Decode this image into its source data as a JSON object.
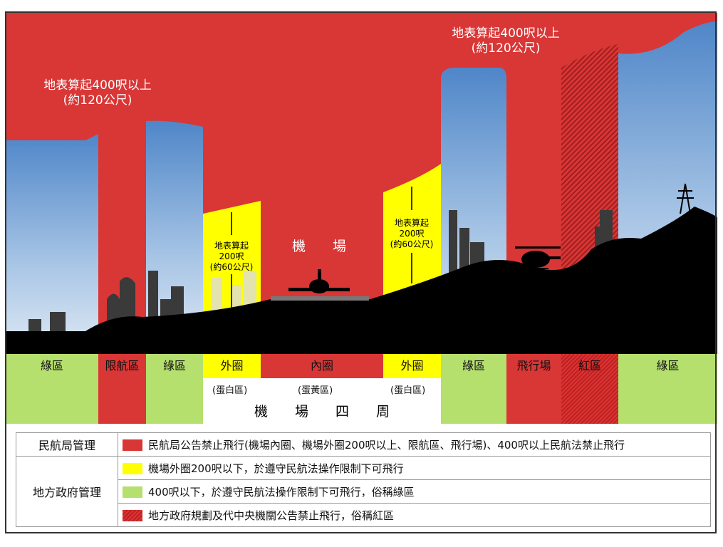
{
  "top": {
    "left_limit": [
      "地表算起400呎以上",
      "(約120公尺)"
    ],
    "right_limit": [
      "地表算起400呎以上",
      "(約120公尺)"
    ],
    "outer_left": [
      "地表算起",
      "200呎",
      "(約60公尺)"
    ],
    "outer_right": [
      "地表算起",
      "200呎",
      "(約60公尺)"
    ],
    "airport": "機　　場"
  },
  "zones": [
    "綠區",
    "限航區",
    "綠區",
    "外圈",
    "內圈",
    "外圈",
    "綠區",
    "飛行場",
    "紅區",
    "綠區"
  ],
  "sub_labels": [
    "(蛋白區)",
    "(蛋黃區)",
    "(蛋白區)"
  ],
  "airport_surround": "機　　場　　四　　周",
  "legend": {
    "caa": "民航局管理",
    "local": "地方政府管理",
    "items": [
      "民航局公告禁止飛行(機場內圈、機場外圈200呎以上、限航區、飛行場)、400呎以上民航法禁止飛行",
      "機場外圈200呎以下，於遵守民航法操作限制下可飛行",
      "400呎以下，於遵守民航法操作限制下可飛行，俗稱綠區",
      "地方政府規劃及代中央機關公告禁止飛行，俗稱紅區"
    ]
  },
  "colors": {
    "red": "#d93636",
    "yellow": "#ffff00",
    "green": "#b5e06e",
    "sky": "#8fb6e0",
    "ground": "#000000"
  }
}
